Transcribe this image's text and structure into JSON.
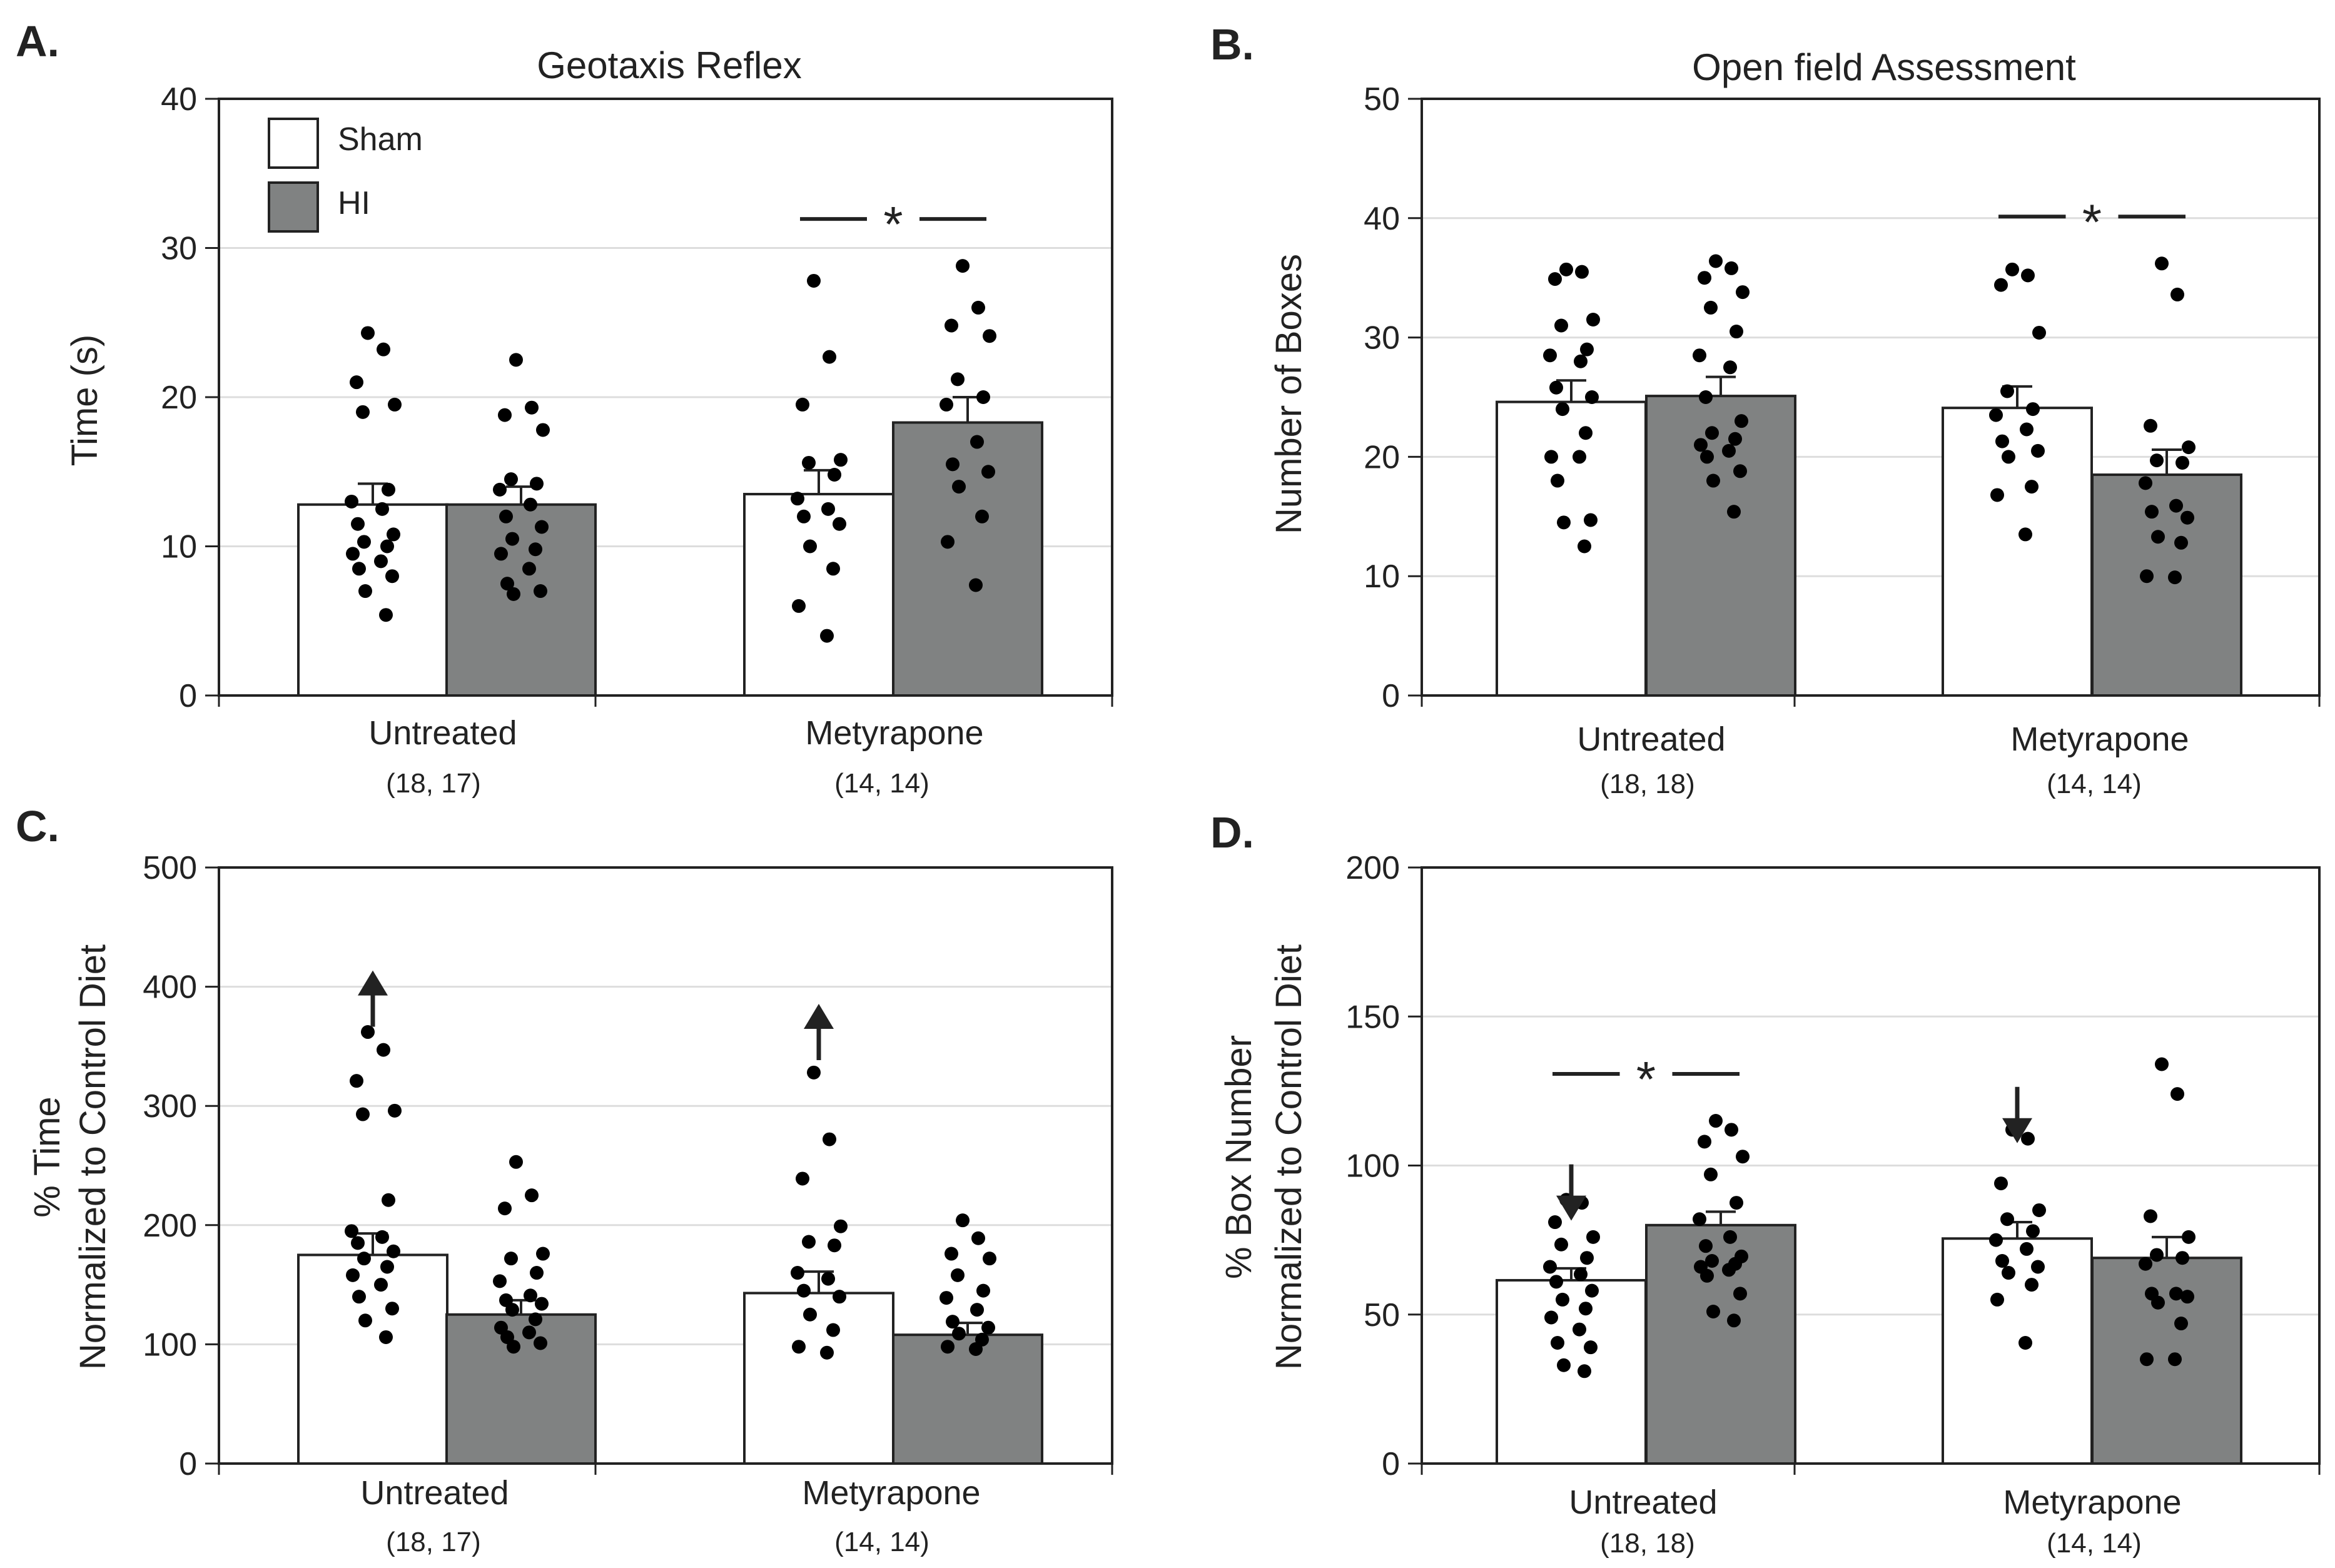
{
  "colors": {
    "sham": "#ffffff",
    "hi": "#808282",
    "axis": "#222222",
    "grid": "#dddddd",
    "point": "#000000"
  },
  "legend": {
    "items": [
      {
        "label": "Sham",
        "color": "#ffffff"
      },
      {
        "label": "HI",
        "color": "#808282"
      }
    ]
  },
  "chart_data": [
    {
      "id": "A",
      "panel_label": "A.",
      "type": "bar",
      "title": "Geotaxis Reflex",
      "ylabel": "Time (s)",
      "ylabel2": "",
      "ylim": [
        0,
        40
      ],
      "yticks": [
        0,
        10,
        20,
        30,
        40
      ],
      "categories": [
        "Untreated",
        "Metyrapone"
      ],
      "n_labels": [
        "(18, 17)",
        "(14, 14)"
      ],
      "series": [
        {
          "name": "Sham",
          "values": [
            12.8,
            13.5
          ],
          "errors": [
            1.4,
            1.6
          ],
          "points": [
            [
              24.3,
              23.2,
              21.0,
              19.5,
              19.0,
              13.8,
              13.0,
              12.5,
              11.5,
              10.8,
              10.3,
              10.0,
              9.5,
              9.0,
              8.5,
              8.0,
              7.0,
              5.4
            ],
            [
              27.8,
              22.7,
              19.5,
              15.8,
              15.6,
              14.8,
              13.2,
              12.5,
              12.0,
              11.5,
              10.0,
              8.5,
              6.0,
              4.0
            ]
          ]
        },
        {
          "name": "HI",
          "values": [
            12.8,
            18.3
          ],
          "errors": [
            1.2,
            1.7
          ],
          "points": [
            [
              22.5,
              19.3,
              18.8,
              17.8,
              14.5,
              14.2,
              13.8,
              12.8,
              12.0,
              11.3,
              10.5,
              9.8,
              9.5,
              8.5,
              7.5,
              7.0,
              6.8
            ],
            [
              28.8,
              26.0,
              24.8,
              24.1,
              21.2,
              20.0,
              19.5,
              17.0,
              15.5,
              15.0,
              14.0,
              12.0,
              10.3,
              7.4
            ]
          ]
        }
      ],
      "significance": [
        {
          "group": 1,
          "label": "*"
        }
      ],
      "arrows": [],
      "show_legend": true
    },
    {
      "id": "B",
      "panel_label": "B.",
      "type": "bar",
      "title": "Open field Assessment",
      "ylabel": "Number of Boxes",
      "ylabel2": "",
      "ylim": [
        0,
        50
      ],
      "yticks": [
        0,
        10,
        20,
        30,
        40,
        50
      ],
      "categories": [
        "Untreated",
        "Metyrapone"
      ],
      "n_labels": [
        "(18, 18)",
        "(14, 14)"
      ],
      "series": [
        {
          "name": "Sham",
          "values": [
            24.6,
            24.1
          ],
          "errors": [
            1.8,
            1.8
          ],
          "points": [
            [
              35.7,
              35.5,
              34.9,
              31.5,
              31.0,
              29.0,
              28.5,
              28.0,
              25.8,
              25.0,
              24.0,
              22.0,
              20.0,
              20.0,
              18.0,
              14.7,
              14.5,
              12.5
            ],
            [
              35.7,
              35.2,
              34.4,
              30.4,
              25.5,
              24.0,
              23.5,
              22.3,
              21.3,
              20.5,
              20.0,
              17.5,
              16.8,
              13.5
            ]
          ]
        },
        {
          "name": "HI",
          "values": [
            25.1,
            18.5
          ],
          "errors": [
            1.6,
            2.1
          ],
          "points": [
            [
              36.4,
              35.8,
              35.0,
              33.8,
              32.5,
              30.5,
              28.5,
              27.5,
              25.0,
              23.0,
              22.0,
              21.5,
              21.0,
              20.5,
              20.0,
              18.8,
              18.0,
              15.4
            ],
            [
              36.2,
              33.6,
              22.6,
              20.8,
              19.7,
              19.5,
              17.8,
              15.9,
              15.4,
              14.9,
              13.3,
              12.8,
              10.0,
              9.9
            ]
          ]
        }
      ],
      "significance": [
        {
          "group": 1,
          "label": "*"
        }
      ],
      "arrows": [],
      "show_legend": false
    },
    {
      "id": "C",
      "panel_label": "C.",
      "type": "bar",
      "title": "",
      "ylabel": "% Time",
      "ylabel2": "Normalized to Control Diet",
      "ylim": [
        0,
        500
      ],
      "yticks": [
        0,
        100,
        200,
        300,
        400,
        500
      ],
      "categories": [
        "Untreated",
        "Metyrapone"
      ],
      "n_labels": [
        "(18, 17)",
        "(14, 14)"
      ],
      "series": [
        {
          "name": "Sham",
          "values": [
            175,
            143
          ],
          "errors": [
            18,
            18
          ],
          "points": [
            [
              362,
              347,
              321,
              296,
              293,
              221,
              195,
              190,
              185,
              178,
              172,
              165,
              158,
              150,
              140,
              130,
              120,
              106
            ],
            [
              328,
              272,
              239,
              199,
              186,
              183,
              160,
              155,
              145,
              140,
              125,
              112,
              98,
              93
            ]
          ]
        },
        {
          "name": "HI",
          "values": [
            125,
            108
          ],
          "errors": [
            12,
            10
          ],
          "points": [
            [
              253,
              225,
              214,
              176,
              172,
              160,
              153,
              141,
              137,
              134,
              129,
              121,
              114,
              110,
              106,
              101,
              98
            ],
            [
              204,
              189,
              176,
              172,
              158,
              145,
              139,
              129,
              119,
              114,
              109,
              104,
              98,
              96
            ]
          ]
        }
      ],
      "significance": [],
      "arrows": [
        {
          "group": 0,
          "series": 0,
          "dir": "up",
          "at": 390
        },
        {
          "group": 1,
          "series": 0,
          "dir": "up",
          "at": 362
        }
      ],
      "show_legend": false
    },
    {
      "id": "D",
      "panel_label": "D.",
      "type": "bar",
      "title": "",
      "ylabel": "% Box Number",
      "ylabel2": "Normalized to Control Diet",
      "ylim": [
        0,
        200
      ],
      "yticks": [
        0,
        50,
        100,
        150,
        200
      ],
      "categories": [
        "Untreated",
        "Metyrapone"
      ],
      "n_labels": [
        "(18, 18)",
        "(14, 14)"
      ],
      "series": [
        {
          "name": "Sham",
          "values": [
            61.5,
            75.5
          ],
          "errors": [
            4.0,
            5.5
          ],
          "points": [
            [
              88.5,
              87.5,
              81.0,
              76.0,
              73.5,
              69.0,
              66.0,
              63.5,
              61.0,
              58.0,
              55.0,
              52.0,
              49.0,
              45.0,
              40.5,
              39.0,
              33.0,
              31.0
            ],
            [
              112.0,
              109.0,
              94.0,
              85.0,
              82.0,
              78.0,
              75.0,
              72.0,
              68.0,
              66.0,
              64.0,
              60.0,
              55.0,
              40.5
            ]
          ]
        },
        {
          "name": "HI",
          "values": [
            80.0,
            69.0
          ],
          "errors": [
            4.5,
            7.0
          ],
          "points": [
            [
              115.0,
              112.0,
              108.0,
              103.0,
              97.0,
              87.5,
              82.0,
              76.0,
              73.0,
              69.5,
              68.0,
              67.0,
              66.0,
              65.0,
              63.0,
              57.0,
              51.0,
              48.0
            ],
            [
              134.0,
              124.0,
              83.0,
              76.0,
              70.0,
              69.0,
              67.0,
              57.0,
              57.0,
              56.0,
              54.0,
              47.0,
              35.0,
              35.0
            ]
          ]
        }
      ],
      "significance": [
        {
          "group": 0,
          "label": "*"
        }
      ],
      "arrows": [
        {
          "group": 0,
          "series": 0,
          "dir": "down",
          "at": 92
        },
        {
          "group": 1,
          "series": 0,
          "dir": "down",
          "at": 118
        }
      ],
      "show_legend": false
    }
  ]
}
